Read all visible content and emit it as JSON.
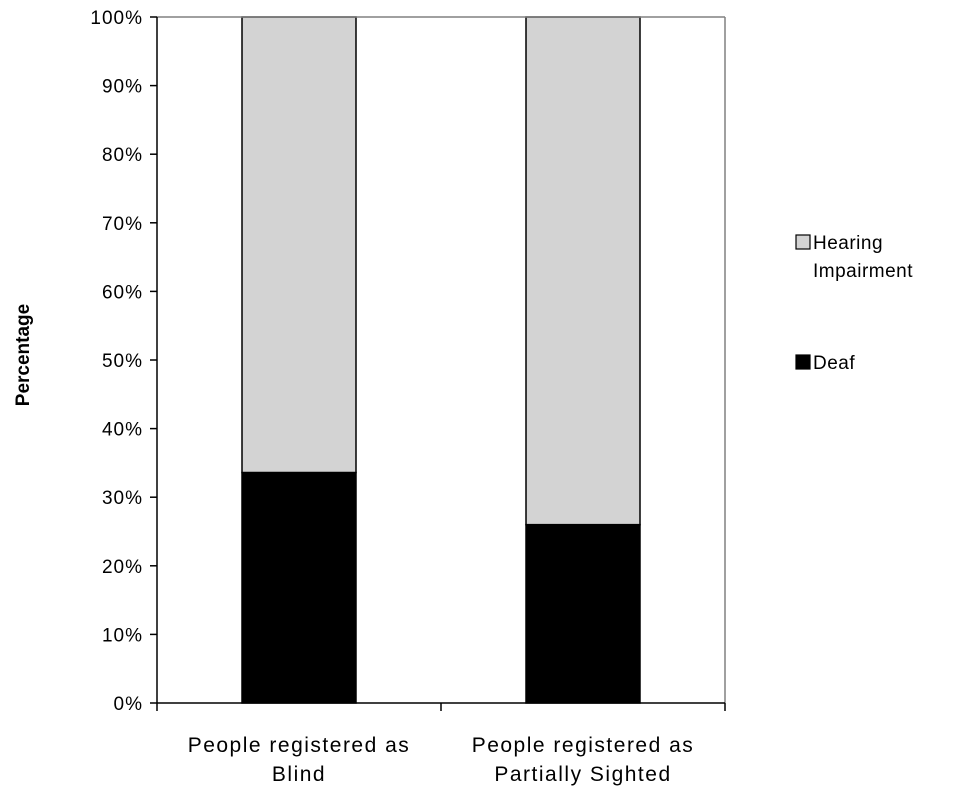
{
  "chart_data": {
    "type": "bar",
    "stacked": true,
    "categories": [
      [
        "People registered as",
        "Blind"
      ],
      [
        "People registered as",
        "Partially Sighted"
      ]
    ],
    "series": [
      {
        "name": "Deaf",
        "values": [
          33.6,
          26.0
        ],
        "color": "#000000"
      },
      {
        "name": "Hearing Impairment",
        "values": [
          66.4,
          74.0
        ],
        "color": "#d3d3d3"
      }
    ],
    "ylabel": "Percentage",
    "ylim": [
      0,
      100
    ],
    "yticks": [
      "0%",
      "10%",
      "20%",
      "30%",
      "40%",
      "50%",
      "60%",
      "70%",
      "80%",
      "90%",
      "100%"
    ],
    "grid": false,
    "legend": {
      "position": "right",
      "entries": [
        {
          "lines": [
            "Hearing",
            "Impairment"
          ],
          "color": "#d3d3d3"
        },
        {
          "lines": [
            "Deaf"
          ],
          "color": "#000000"
        }
      ]
    }
  }
}
